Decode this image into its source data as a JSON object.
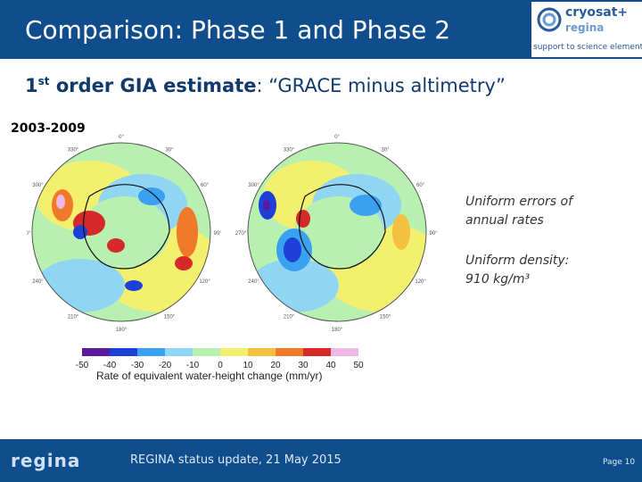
{
  "header": {
    "title": "Comparison: Phase 1 and Phase 2"
  },
  "logo": {
    "line1": "cryosat+",
    "line2": "regina",
    "line3": "support to science element"
  },
  "subtitle": {
    "ordinal": "1",
    "sup": "st",
    "bold": " order GIA estimate",
    "rest": ": “GRACE minus altimetry”"
  },
  "period": "2003-2009",
  "notes": {
    "n1_line1": "Uniform errors of",
    "n1_line2": "annual rates",
    "n2_line1": "Uniform density:",
    "n2_line2": "910 kg/m³"
  },
  "maps": {
    "ring_labels": [
      "0°",
      "30°",
      "60°",
      "90°",
      "120°",
      "150°",
      "180°",
      "210°",
      "240°",
      "270°",
      "300°",
      "330°"
    ]
  },
  "colorbar": {
    "ticks": [
      "-50",
      "-40",
      "-30",
      "-20",
      "-10",
      "0",
      "10",
      "20",
      "30",
      "40",
      "50"
    ],
    "colors": [
      "#5a1aa0",
      "#1e3fd8",
      "#3aa0f0",
      "#8fd6f5",
      "#b8f0b0",
      "#f3f070",
      "#f4c040",
      "#ef7a2a",
      "#d62a2a",
      "#f0b8e8"
    ],
    "label": "Rate of equivalent water-height change (mm/yr)"
  },
  "footer": {
    "logo": "regina",
    "text": "REGINA status update, 21 May 2015",
    "page": "Page 10"
  }
}
